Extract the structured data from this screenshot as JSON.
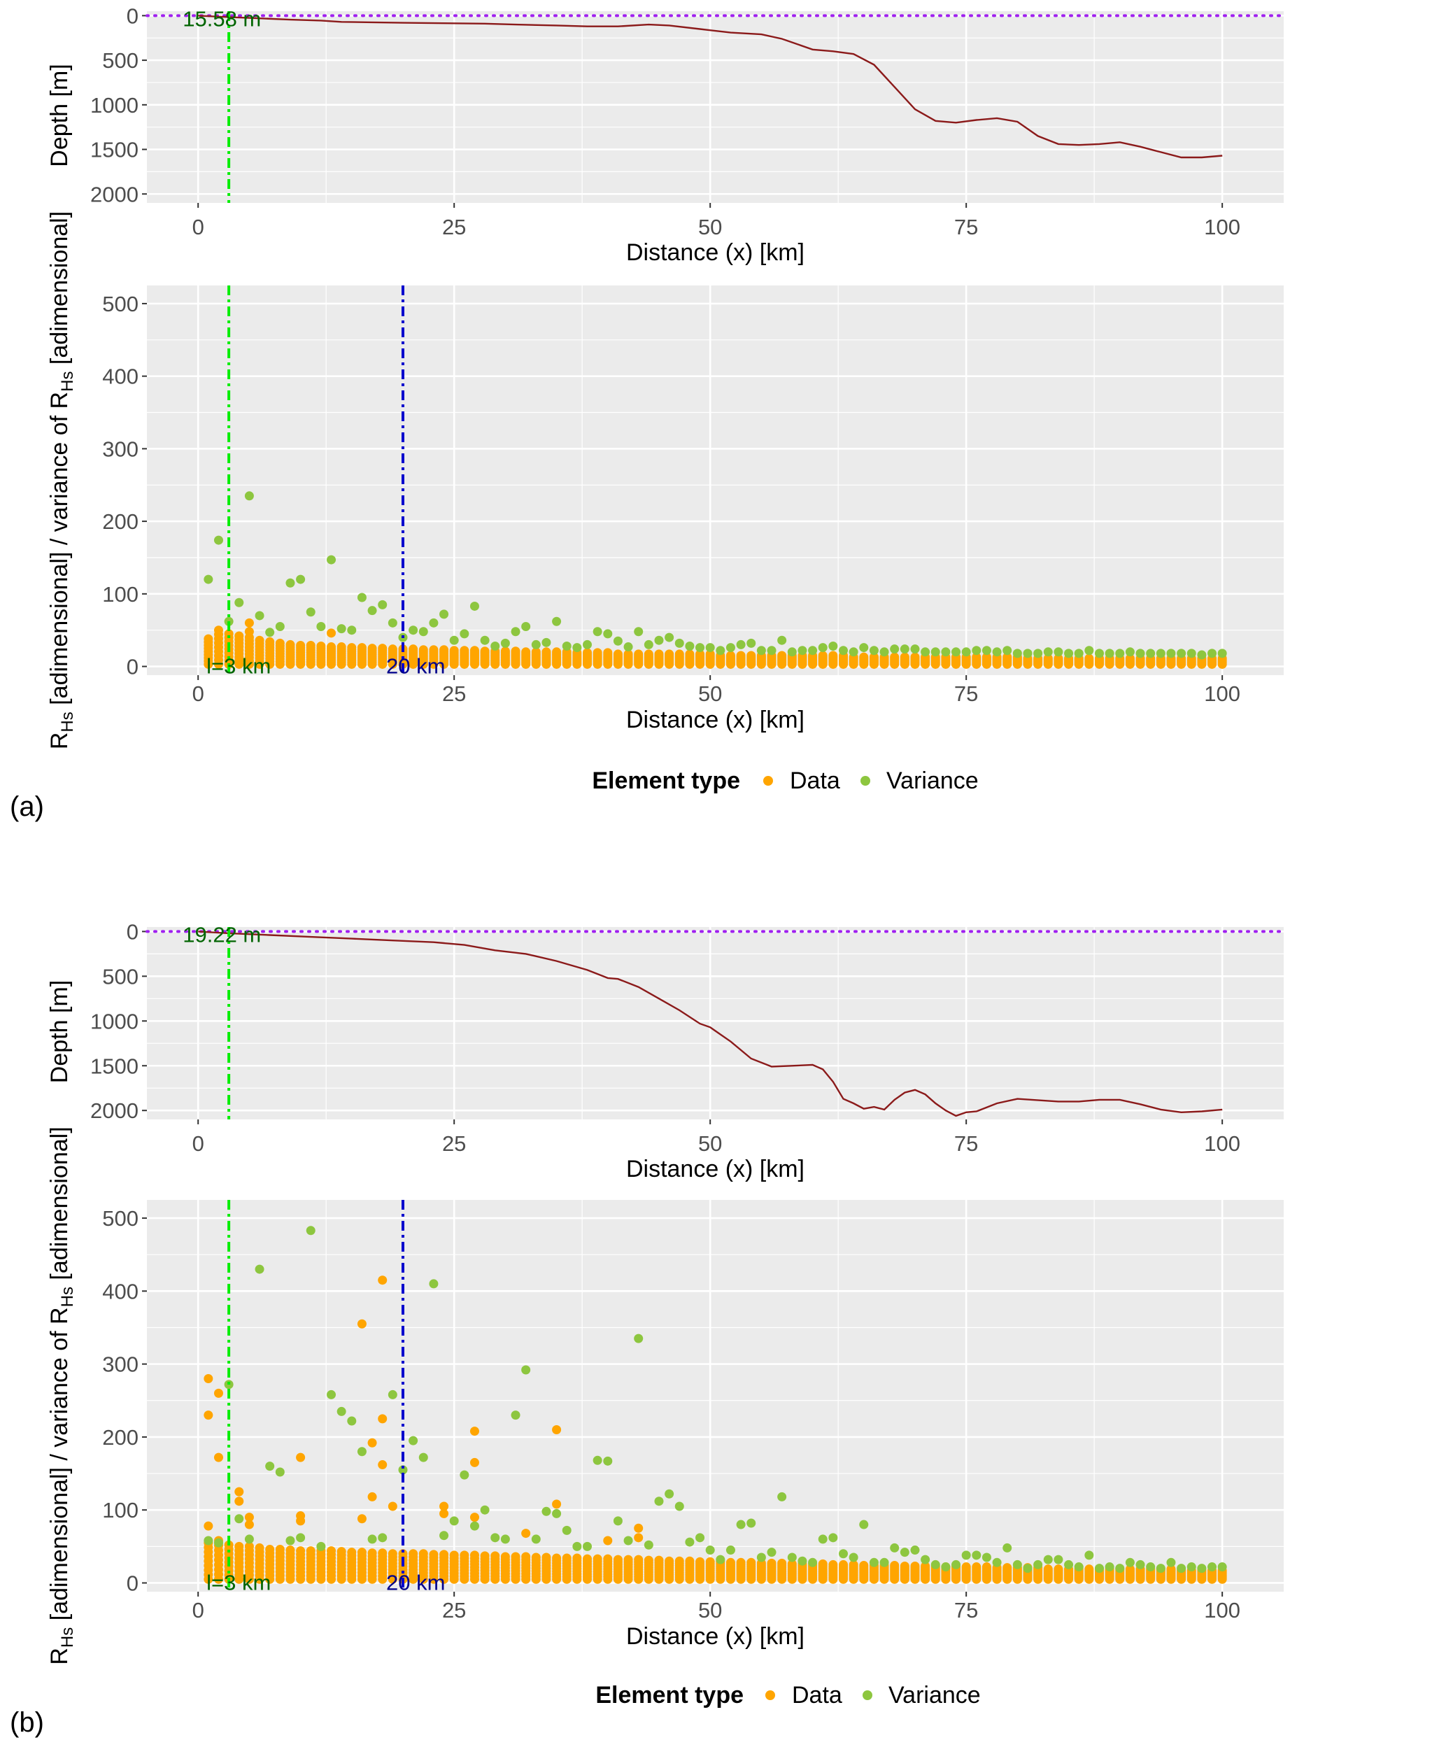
{
  "figure": {
    "panel_labels": [
      "(a)",
      "(b)"
    ],
    "legend": {
      "title": "Element type",
      "entries": [
        {
          "label": "Data",
          "color": "#ffa500"
        },
        {
          "label": "Variance",
          "color": "#8dc63f"
        }
      ]
    },
    "colors": {
      "panel_bg": "#ebebeb",
      "grid": "#ffffff",
      "depth_line": "#8b1a1a",
      "sea_level": "#a020f0",
      "l_marker": "#00ee00",
      "d20_marker": "#0000cd",
      "label_green": "#006400",
      "label_blue": "#00008b"
    }
  },
  "chart_data": [
    {
      "type": "line",
      "panel": "(a) depth profile",
      "xlabel": "Distance (x) [km]",
      "ylabel": "Depth [m]",
      "xlim": [
        -5,
        106
      ],
      "ylim": [
        2100,
        -50
      ],
      "x_ticks": [
        0,
        25,
        50,
        75,
        100
      ],
      "y_ticks": [
        0,
        500,
        1000,
        1500,
        2000
      ],
      "x": [
        0,
        3,
        6,
        9,
        12,
        14,
        17,
        20,
        24,
        28,
        31,
        35,
        38,
        41,
        44,
        46,
        49,
        52,
        55,
        57,
        60,
        62,
        64,
        66,
        68,
        70,
        72,
        74,
        76,
        78,
        80,
        82,
        84,
        86,
        88,
        90,
        92,
        94,
        96,
        98,
        100
      ],
      "y": [
        0,
        15.58,
        30,
        45,
        55,
        70,
        75,
        80,
        85,
        90,
        100,
        110,
        120,
        120,
        100,
        110,
        150,
        190,
        210,
        260,
        380,
        400,
        430,
        550,
        800,
        1050,
        1180,
        1200,
        1170,
        1150,
        1190,
        1350,
        1440,
        1450,
        1440,
        1420,
        1470,
        1530,
        1590,
        1590,
        1570
      ],
      "sea_level_label": "15.58 m",
      "sea_level": 0,
      "l_marker_x": 3
    },
    {
      "type": "scatter",
      "panel": "(a) RHs / variance",
      "xlabel": "Distance (x) [km]",
      "ylabel_parts": {
        "r": "R",
        "sub": "Hs",
        "mid": " [adimensional] / variance of R",
        "end": " [adimensional]"
      },
      "xlim": [
        -5,
        106
      ],
      "ylim": [
        -12,
        525
      ],
      "x_ticks": [
        0,
        25,
        50,
        75,
        100
      ],
      "y_ticks": [
        0,
        100,
        200,
        300,
        400,
        500
      ],
      "l_marker": {
        "x": 3,
        "label": "l=3 km"
      },
      "d20_marker": {
        "x": 20,
        "label": "20 km"
      },
      "data_band": {
        "x_from": 1,
        "x_to": 100,
        "x_step": 1,
        "base_low": 3,
        "base_high": [
          38,
          50,
          45,
          42,
          40,
          36,
          34,
          32,
          30,
          29,
          29,
          28,
          27,
          27,
          26,
          26,
          25,
          25,
          24,
          24,
          24,
          23,
          23,
          23,
          22,
          22,
          22,
          21,
          21,
          21,
          21,
          20,
          20,
          20,
          20,
          20,
          19,
          19,
          19,
          19,
          18,
          18,
          18,
          18,
          18,
          17,
          17,
          17,
          17,
          17,
          16,
          16,
          16,
          16,
          16,
          16,
          15,
          15,
          15,
          15,
          15,
          15,
          15,
          14,
          14,
          14,
          14,
          14,
          14,
          14,
          14,
          13,
          13,
          13,
          13,
          13,
          13,
          13,
          13,
          13,
          12,
          12,
          12,
          12,
          12,
          12,
          12,
          12,
          12,
          12,
          12,
          11,
          11,
          11,
          11,
          11,
          11,
          11,
          11,
          11
        ]
      },
      "data_extra": {
        "x": [
          5,
          5,
          13
        ],
        "y": [
          60,
          48,
          46
        ]
      },
      "variance": {
        "x": [
          1,
          2,
          3,
          4,
          5,
          6,
          7,
          8,
          9,
          10,
          11,
          12,
          13,
          14,
          15,
          16,
          17,
          18,
          19,
          20,
          21,
          22,
          23,
          24,
          25,
          26,
          27,
          28,
          29,
          30,
          31,
          32,
          33,
          34,
          35,
          36,
          37,
          38,
          39,
          40,
          41,
          42,
          43,
          44,
          45,
          46,
          47,
          48,
          49,
          50,
          51,
          52,
          53,
          54,
          55,
          56,
          57,
          58,
          59,
          60,
          61,
          62,
          63,
          64,
          65,
          66,
          67,
          68,
          69,
          70,
          71,
          72,
          73,
          74,
          75,
          76,
          77,
          78,
          79,
          80,
          81,
          82,
          83,
          84,
          85,
          86,
          87,
          88,
          89,
          90,
          91,
          92,
          93,
          94,
          95,
          96,
          97,
          98,
          99,
          100
        ],
        "y": [
          120,
          174,
          62,
          88,
          235,
          70,
          47,
          55,
          115,
          120,
          75,
          55,
          147,
          52,
          50,
          95,
          77,
          85,
          60,
          40,
          50,
          48,
          60,
          72,
          36,
          45,
          83,
          36,
          28,
          32,
          48,
          55,
          30,
          33,
          62,
          28,
          26,
          30,
          48,
          45,
          35,
          27,
          48,
          30,
          36,
          40,
          32,
          28,
          26,
          26,
          22,
          26,
          30,
          32,
          22,
          22,
          36,
          20,
          22,
          22,
          26,
          28,
          22,
          20,
          26,
          22,
          20,
          24,
          24,
          24,
          20,
          20,
          20,
          20,
          20,
          22,
          22,
          20,
          22,
          18,
          18,
          18,
          20,
          20,
          18,
          18,
          22,
          18,
          18,
          18,
          20,
          18,
          18,
          18,
          18,
          18,
          18,
          16,
          18,
          18
        ]
      }
    },
    {
      "type": "line",
      "panel": "(b) depth profile",
      "xlabel": "Distance (x) [km]",
      "ylabel": "Depth [m]",
      "xlim": [
        -5,
        106
      ],
      "ylim": [
        2100,
        -50
      ],
      "x_ticks": [
        0,
        25,
        50,
        75,
        100
      ],
      "y_ticks": [
        0,
        500,
        1000,
        1500,
        2000
      ],
      "x": [
        0,
        3,
        7,
        11,
        15,
        19,
        23,
        26,
        29,
        32,
        35,
        38,
        40,
        41,
        43,
        45,
        47,
        49,
        50,
        51,
        52,
        54,
        56,
        58,
        60,
        61,
        62,
        63,
        64,
        65,
        66,
        67,
        68,
        69,
        70,
        71,
        72,
        73,
        74,
        75,
        76,
        78,
        80,
        84,
        86,
        88,
        90,
        92,
        94,
        96,
        98,
        100
      ],
      "y": [
        0,
        19.22,
        40,
        60,
        80,
        100,
        120,
        150,
        210,
        250,
        330,
        430,
        520,
        530,
        620,
        750,
        880,
        1030,
        1070,
        1150,
        1230,
        1420,
        1510,
        1500,
        1490,
        1540,
        1680,
        1870,
        1920,
        1980,
        1960,
        1990,
        1880,
        1800,
        1770,
        1820,
        1920,
        2000,
        2060,
        2020,
        2010,
        1920,
        1870,
        1900,
        1900,
        1880,
        1880,
        1930,
        1990,
        2020,
        2010,
        1990
      ],
      "sea_level_label": "19.22 m",
      "sea_level": 0,
      "l_marker_x": 3
    },
    {
      "type": "scatter",
      "panel": "(b) RHs / variance",
      "xlabel": "Distance (x) [km]",
      "ylabel_parts": {
        "r": "R",
        "sub": "Hs",
        "mid": " [adimensional] / variance of R",
        "end": " [adimensional]"
      },
      "xlim": [
        -5,
        106
      ],
      "ylim": [
        -12,
        525
      ],
      "x_ticks": [
        0,
        25,
        50,
        75,
        100
      ],
      "y_ticks": [
        0,
        100,
        200,
        300,
        400,
        500
      ],
      "l_marker": {
        "x": 3,
        "label": "l=3 km"
      },
      "d20_marker": {
        "x": 20,
        "label": "20 km"
      },
      "data_band": {
        "x_from": 1,
        "x_to": 100,
        "x_step": 1,
        "base_low": 5,
        "base_high": [
          55,
          58,
          52,
          50,
          50,
          48,
          46,
          46,
          45,
          44,
          44,
          44,
          44,
          43,
          42,
          42,
          41,
          41,
          40,
          40,
          40,
          40,
          39,
          39,
          38,
          38,
          38,
          37,
          37,
          36,
          36,
          36,
          35,
          35,
          34,
          34,
          34,
          33,
          33,
          33,
          32,
          32,
          32,
          31,
          31,
          30,
          30,
          30,
          29,
          29,
          29,
          28,
          28,
          28,
          27,
          27,
          27,
          26,
          26,
          26,
          26,
          25,
          25,
          25,
          24,
          24,
          24,
          24,
          23,
          23,
          23,
          23,
          22,
          22,
          22,
          22,
          22,
          21,
          21,
          21,
          21,
          21,
          20,
          20,
          20,
          20,
          20,
          20,
          19,
          19,
          19,
          19,
          19,
          19,
          19,
          18,
          18,
          18,
          18,
          18
        ]
      },
      "data_extra": {
        "x": [
          1,
          1,
          1,
          2,
          2,
          4,
          4,
          5,
          5,
          10,
          10,
          10,
          16,
          16,
          17,
          17,
          18,
          18,
          18,
          19,
          24,
          24,
          27,
          27,
          27,
          32,
          35,
          35,
          40,
          43,
          43
        ],
        "y": [
          280,
          230,
          78,
          260,
          172,
          125,
          112,
          90,
          80,
          172,
          92,
          85,
          355,
          88,
          192,
          118,
          415,
          225,
          162,
          105,
          105,
          95,
          208,
          165,
          90,
          68,
          210,
          108,
          58,
          75,
          62
        ]
      },
      "variance": {
        "x": [
          1,
          2,
          3,
          4,
          5,
          6,
          7,
          8,
          9,
          10,
          11,
          12,
          13,
          14,
          15,
          16,
          17,
          18,
          19,
          20,
          21,
          22,
          23,
          24,
          25,
          26,
          27,
          28,
          29,
          30,
          31,
          32,
          33,
          34,
          35,
          36,
          37,
          38,
          39,
          40,
          41,
          42,
          43,
          44,
          45,
          46,
          47,
          48,
          49,
          50,
          51,
          52,
          53,
          54,
          55,
          56,
          57,
          58,
          59,
          60,
          61,
          62,
          63,
          64,
          65,
          66,
          67,
          68,
          69,
          70,
          71,
          72,
          73,
          74,
          75,
          76,
          77,
          78,
          79,
          80,
          81,
          82,
          83,
          84,
          85,
          86,
          87,
          88,
          89,
          90,
          91,
          92,
          93,
          94,
          95,
          96,
          97,
          98,
          99,
          100
        ],
        "y": [
          58,
          55,
          272,
          88,
          60,
          430,
          160,
          152,
          58,
          62,
          483,
          50,
          258,
          235,
          222,
          180,
          60,
          62,
          258,
          155,
          195,
          172,
          410,
          65,
          85,
          148,
          78,
          100,
          62,
          60,
          230,
          292,
          60,
          98,
          95,
          72,
          50,
          50,
          168,
          167,
          85,
          58,
          335,
          52,
          112,
          122,
          105,
          56,
          62,
          45,
          32,
          45,
          80,
          82,
          35,
          42,
          118,
          35,
          30,
          28,
          60,
          62,
          40,
          35,
          80,
          28,
          28,
          48,
          42,
          45,
          32,
          25,
          22,
          25,
          38,
          38,
          35,
          28,
          48,
          25,
          20,
          25,
          32,
          32,
          25,
          22,
          38,
          20,
          22,
          20,
          28,
          25,
          22,
          20,
          28,
          20,
          22,
          20,
          22,
          22
        ]
      }
    }
  ]
}
